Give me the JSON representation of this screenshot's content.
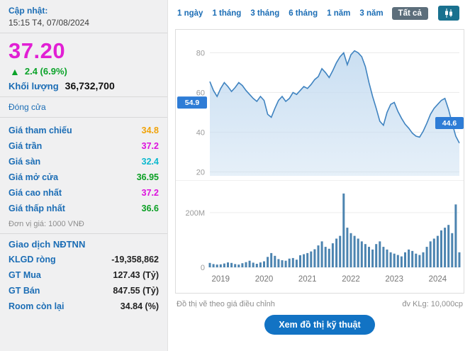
{
  "sidebar": {
    "updated_label": "Cập nhật:",
    "updated_time": "15:15 T4, 07/08/2024",
    "price": "37.20",
    "change_arrow": "▲",
    "change": "2.4 (6.9%)",
    "volume_label": "Khối lượng",
    "volume_value": "36,732,700",
    "close_label": "Đóng cửa",
    "price_rows": [
      {
        "label": "Giá tham chiếu",
        "value": "34.8",
        "color": "#f0a30a"
      },
      {
        "label": "Giá trần",
        "value": "37.2",
        "color": "#dd11dd"
      },
      {
        "label": "Giá sàn",
        "value": "32.4",
        "color": "#0bb8ce"
      },
      {
        "label": "Giá mở cửa",
        "value": "36.95",
        "color": "#0a9f23"
      },
      {
        "label": "Giá cao nhất",
        "value": "37.2",
        "color": "#dd11dd"
      },
      {
        "label": "Giá thấp nhất",
        "value": "36.6",
        "color": "#0a9f23"
      }
    ],
    "unit_note": "Đơn vị giá: 1000 VNĐ",
    "foreign_header": "Giao dịch NĐTNN",
    "foreign_rows": [
      {
        "label": "KLGD ròng",
        "value": "-19,358,862"
      },
      {
        "label": "GT Mua",
        "value": "127.43 (Tỷ)"
      },
      {
        "label": "GT Bán",
        "value": "847.55 (Tỷ)"
      },
      {
        "label": "Room còn lại",
        "value": "34.84 (%)"
      }
    ]
  },
  "toolbar": {
    "ranges": [
      "1 ngày",
      "1 tháng",
      "3 tháng",
      "6 tháng",
      "1 năm",
      "3 năm",
      "Tất cả"
    ],
    "selected": "Tất cả",
    "chart_type_icon": "candlestick-icon"
  },
  "chart_data": {
    "type": "area+bar",
    "title": "",
    "x_ticks": [
      "2019",
      "2020",
      "2021",
      "2022",
      "2023",
      "2024"
    ],
    "x_tick_indices": [
      3,
      15,
      27,
      39,
      51,
      63
    ],
    "price": {
      "type": "area",
      "ylim": [
        18,
        88
      ],
      "yticks": [
        80,
        60,
        40,
        20
      ],
      "values": [
        65.5,
        61,
        58,
        62,
        65,
        63,
        60.5,
        62.5,
        65,
        63.5,
        61,
        59,
        57,
        55.5,
        58,
        56,
        49,
        47.5,
        52,
        56,
        58,
        55.5,
        57,
        60,
        59,
        61,
        63,
        62,
        64,
        66.5,
        68,
        72,
        70,
        67.5,
        71,
        75,
        78,
        80,
        74,
        79,
        81,
        80,
        78,
        73,
        65,
        58,
        52,
        45.5,
        43.5,
        50,
        54,
        55,
        50.5,
        47,
        44,
        42,
        39.5,
        38,
        37.5,
        40.5,
        44.5,
        49,
        52,
        54,
        56,
        57,
        51.5,
        44.5,
        38,
        34.5
      ]
    },
    "volume": {
      "type": "bar",
      "unit": "million shares",
      "ylim": [
        0,
        280
      ],
      "yticks": [
        {
          "label": "200M",
          "value": 200
        },
        {
          "label": "0",
          "value": 0
        }
      ],
      "values": [
        16,
        12,
        10,
        11,
        14,
        18,
        16,
        12,
        10,
        15,
        19,
        24,
        17,
        13,
        18,
        22,
        38,
        52,
        42,
        30,
        26,
        24,
        32,
        34,
        28,
        44,
        48,
        52,
        58,
        66,
        80,
        95,
        75,
        68,
        88,
        105,
        115,
        270,
        145,
        125,
        115,
        105,
        95,
        85,
        75,
        65,
        85,
        95,
        75,
        65,
        55,
        50,
        45,
        40,
        55,
        65,
        60,
        50,
        45,
        55,
        75,
        95,
        105,
        115,
        135,
        145,
        155,
        125,
        230,
        55
      ]
    },
    "badges": [
      {
        "side": "left",
        "label": "54.9",
        "value": 54.9
      },
      {
        "side": "right",
        "label": "44.6",
        "value": 44.6
      }
    ],
    "colors": {
      "line": "#3f83c0",
      "fill": "#c7ddf1",
      "bar": "#4c84b0",
      "badge": "#2e7cd6"
    }
  },
  "footer": {
    "note_left": "Đồ thị vẽ theo giá điều chỉnh",
    "note_right": "đv KLg: 10,000cp",
    "button": "Xem đồ thị kỹ thuật"
  }
}
